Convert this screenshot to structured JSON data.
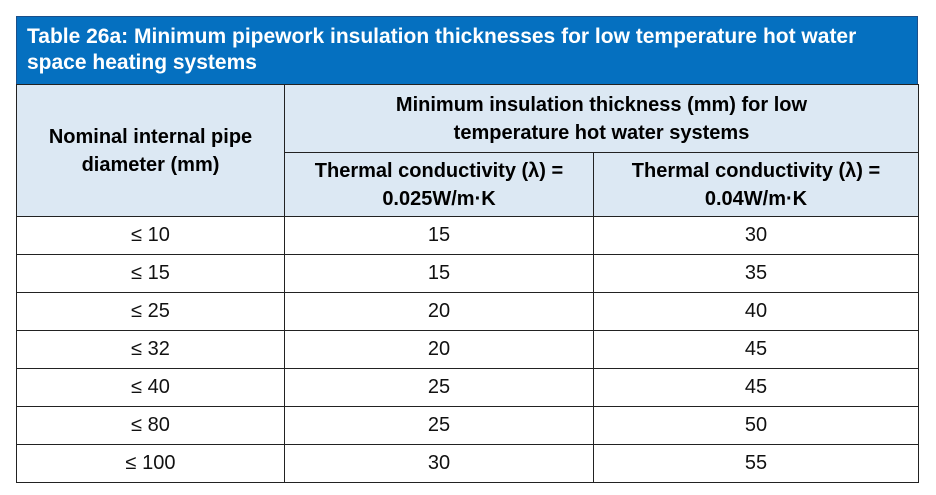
{
  "table": {
    "title": "Table 26a: Minimum pipework insulation thicknesses for low temperature hot water space heating systems",
    "headers": {
      "pipe_diameter": "Nominal internal pipe diameter (mm)",
      "group": "Minimum insulation thickness (mm) for low temperature hot water systems",
      "conductivity_025": "Thermal conductivity (λ) = 0.025W/m·K",
      "conductivity_04": "Thermal conductivity (λ) = 0.04W/m·K"
    },
    "rows": [
      {
        "diameter": "≤ 10",
        "k025": "15",
        "k04": "30"
      },
      {
        "diameter": "≤ 15",
        "k025": "15",
        "k04": "35"
      },
      {
        "diameter": "≤ 25",
        "k025": "20",
        "k04": "40"
      },
      {
        "diameter": "≤ 32",
        "k025": "20",
        "k04": "45"
      },
      {
        "diameter": "≤ 40",
        "k025": "25",
        "k04": "45"
      },
      {
        "diameter": "≤ 80",
        "k025": "25",
        "k04": "50"
      },
      {
        "diameter": "≤ 100",
        "k025": "30",
        "k04": "55"
      }
    ]
  },
  "colors": {
    "title_background": "#0570c0",
    "header_background": "#dce8f3"
  }
}
